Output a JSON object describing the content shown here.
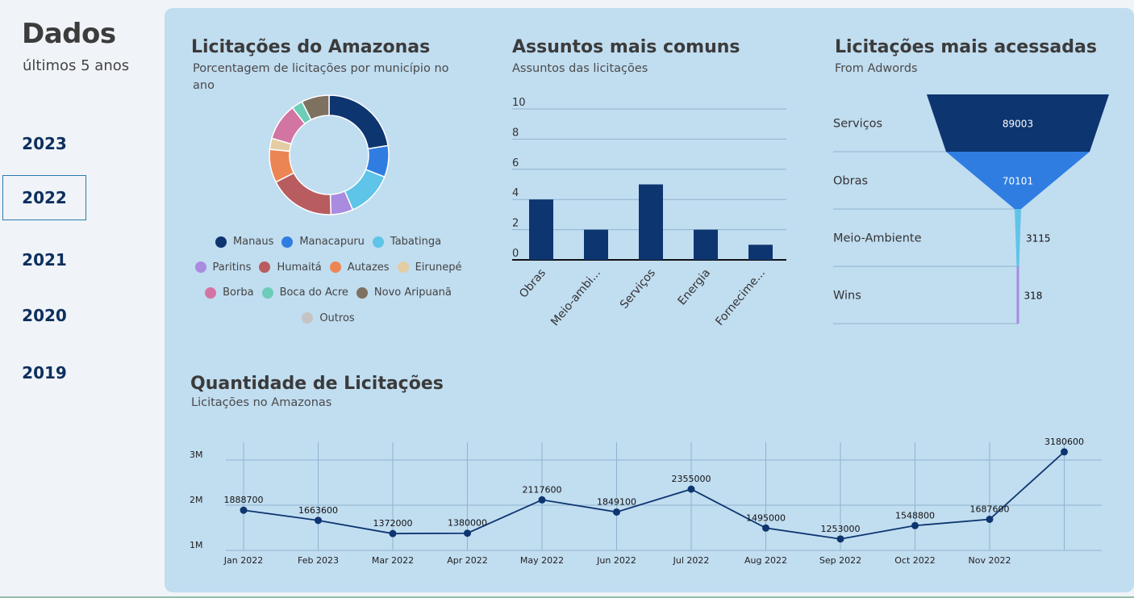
{
  "sidebar": {
    "title": "Dados",
    "subtitle": "últimos 5 anos",
    "years": [
      "2023",
      "2022",
      "2021",
      "2020",
      "2019"
    ],
    "active_year": "2022"
  },
  "donut": {
    "title": "Licitações do Amazonas",
    "subtitle_line1": "Porcentagem de licitações por município no",
    "subtitle_line2": "ano",
    "legend": [
      {
        "label": "Manaus",
        "color": "#0d3570"
      },
      {
        "label": "Manacapuru",
        "color": "#2f7de1"
      },
      {
        "label": "Tabatinga",
        "color": "#5ec4e8"
      },
      {
        "label": "Paritins",
        "color": "#a98be0"
      },
      {
        "label": "Humaitá",
        "color": "#b85c60"
      },
      {
        "label": "Autazes",
        "color": "#ec8554"
      },
      {
        "label": "Eirunepé",
        "color": "#e4cca3"
      },
      {
        "label": "Borba",
        "color": "#d275a3"
      },
      {
        "label": "Boca do Acre",
        "color": "#6ccdb8"
      },
      {
        "label": "Novo Aripuanã",
        "color": "#7e7160"
      },
      {
        "label": "Outros",
        "color": "#c4c4c4"
      }
    ]
  },
  "bar": {
    "title": "Assuntos mais comuns",
    "subtitle": "Assuntos das licitações"
  },
  "funnel": {
    "title": "Licitações mais acessadas",
    "subtitle": "From Adwords",
    "stages": [
      {
        "label": "Serviços",
        "value": 89003,
        "color": "#0d3570"
      },
      {
        "label": "Obras",
        "value": 70101,
        "color": "#2f7de1"
      },
      {
        "label": "Meio-Ambiente",
        "value": 3115,
        "color": "#5ec4e8"
      },
      {
        "label": "Wins",
        "value": 318,
        "color": "#a98be0"
      }
    ]
  },
  "line": {
    "title": "Quantidade de Licitações",
    "subtitle": "Licitações no Amazonas"
  },
  "chart_data": [
    {
      "type": "pie",
      "title": "Licitações do Amazonas",
      "subtitle": "Porcentagem de licitações por município no ano",
      "categories": [
        "Manaus",
        "Manacapuru",
        "Tabatinga",
        "Paritins",
        "Humaitá",
        "Autazes",
        "Eirunepé",
        "Borba",
        "Boca do Acre",
        "Novo Aripuanã"
      ],
      "values": [
        22.5,
        8.5,
        12.5,
        6,
        18,
        9,
        3,
        10,
        3,
        7.5
      ],
      "donut": true
    },
    {
      "type": "bar",
      "title": "Assuntos mais comuns",
      "subtitle": "Assuntos das licitações",
      "categories": [
        "Obras",
        "Meio-ambi...",
        "Serviços",
        "Energia",
        "Fornecime..."
      ],
      "values": [
        4,
        2,
        5,
        2,
        1
      ],
      "ylim": [
        0,
        10
      ],
      "yticks": [
        0,
        2,
        4,
        6,
        8,
        10
      ]
    },
    {
      "type": "bar",
      "title": "Licitações mais acessadas",
      "subtitle": "From Adwords",
      "categories": [
        "Serviços",
        "Obras",
        "Meio-Ambiente",
        "Wins"
      ],
      "values": [
        89003,
        70101,
        3115,
        318
      ]
    },
    {
      "type": "line",
      "title": "Quantidade de Licitações",
      "subtitle": "Licitações no Amazonas",
      "x": [
        "Jan 2022",
        "Feb 2023",
        "Mar 2022",
        "Apr 2022",
        "May 2022",
        "Jun 2022",
        "Jul 2022",
        "Aug 2022",
        "Sep 2022",
        "Oct 2022",
        "Nov 2022",
        ""
      ],
      "values": [
        1888700,
        1663600,
        1372000,
        1380000,
        2117600,
        1849100,
        2355000,
        1495000,
        1253000,
        1548800,
        1687600,
        3180600
      ],
      "ylim": [
        1000000,
        3400000
      ],
      "yticks": [
        "1M",
        "2M",
        "3M"
      ]
    }
  ]
}
